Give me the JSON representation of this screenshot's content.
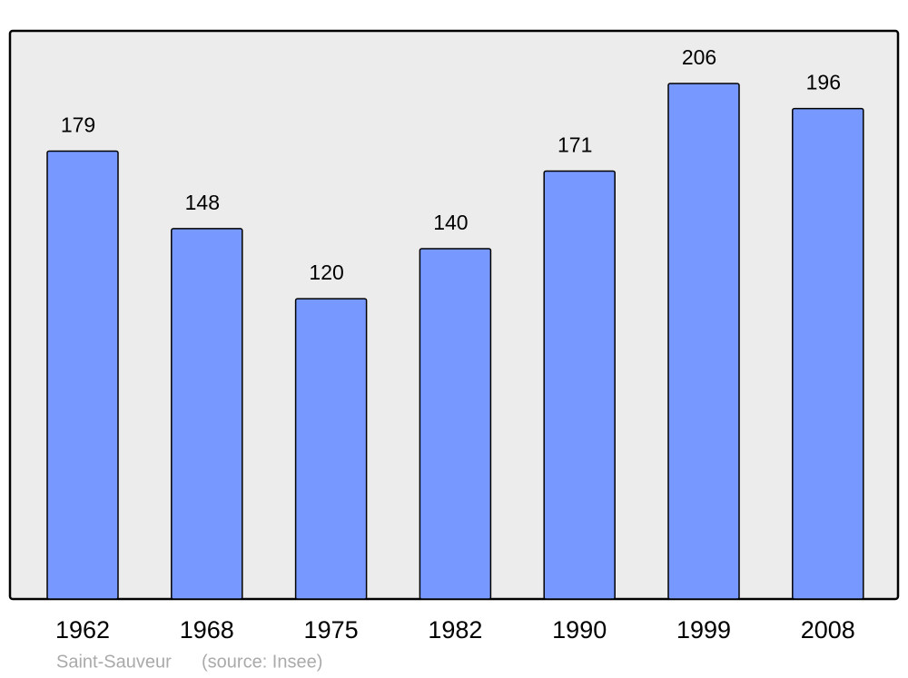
{
  "chart_data": {
    "type": "bar",
    "title": "Saint-Sauveur",
    "source": "(source: Insee)",
    "categories": [
      "1962",
      "1968",
      "1975",
      "1982",
      "1990",
      "1999",
      "2008"
    ],
    "values": [
      179,
      148,
      120,
      140,
      171,
      206,
      196
    ],
    "color": "#7799ff"
  }
}
